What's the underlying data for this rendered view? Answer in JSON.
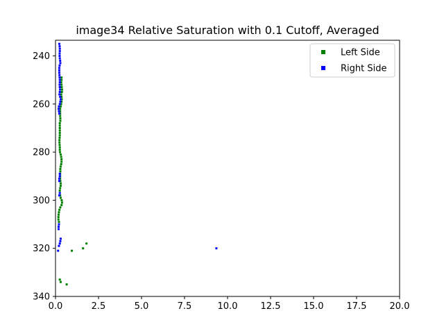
{
  "chart_data": {
    "type": "scatter",
    "title": "image34 Relative Saturation with 0.1 Cutoff, Averaged",
    "xlabel": "",
    "ylabel": "",
    "xlim": [
      0,
      20
    ],
    "ylim": [
      340,
      233.5
    ],
    "y_inverted": true,
    "x_ticks": [
      0,
      2.5,
      5,
      7.5,
      10,
      12.5,
      15,
      17.5,
      20
    ],
    "x_tick_labels": [
      "0.0",
      "2.5",
      "5.0",
      "7.5",
      "10.0",
      "12.5",
      "15.0",
      "17.5",
      "20.0"
    ],
    "y_ticks": [
      240,
      260,
      280,
      300,
      320,
      340
    ],
    "y_tick_labels": [
      "240",
      "260",
      "280",
      "300",
      "320",
      "340"
    ],
    "grid": false,
    "legend_position": "top-right",
    "series": [
      {
        "name": "Left Side",
        "color": "#008000",
        "marker": "square",
        "points": [
          [
            0.35,
            249
          ],
          [
            0.35,
            250
          ],
          [
            0.33,
            251
          ],
          [
            0.35,
            252
          ],
          [
            0.36,
            253
          ],
          [
            0.38,
            254
          ],
          [
            0.37,
            255
          ],
          [
            0.33,
            256
          ],
          [
            0.35,
            257
          ],
          [
            0.36,
            258
          ],
          [
            0.35,
            259
          ],
          [
            0.33,
            260
          ],
          [
            0.3,
            261
          ],
          [
            0.27,
            262
          ],
          [
            0.27,
            263
          ],
          [
            0.27,
            264
          ],
          [
            0.27,
            265
          ],
          [
            0.28,
            266
          ],
          [
            0.28,
            267
          ],
          [
            0.25,
            268
          ],
          [
            0.25,
            269
          ],
          [
            0.25,
            270
          ],
          [
            0.25,
            271
          ],
          [
            0.25,
            272
          ],
          [
            0.25,
            273
          ],
          [
            0.24,
            274
          ],
          [
            0.23,
            275
          ],
          [
            0.23,
            276
          ],
          [
            0.24,
            277
          ],
          [
            0.25,
            278
          ],
          [
            0.25,
            279
          ],
          [
            0.26,
            280
          ],
          [
            0.3,
            281
          ],
          [
            0.33,
            282
          ],
          [
            0.35,
            283
          ],
          [
            0.35,
            284
          ],
          [
            0.33,
            285
          ],
          [
            0.3,
            286
          ],
          [
            0.28,
            287
          ],
          [
            0.28,
            288
          ],
          [
            0.27,
            289
          ],
          [
            0.27,
            290
          ],
          [
            0.27,
            291
          ],
          [
            0.28,
            292
          ],
          [
            0.3,
            293
          ],
          [
            0.3,
            294
          ],
          [
            0.27,
            295
          ],
          [
            0.25,
            296
          ],
          [
            0.25,
            297
          ],
          [
            0.27,
            298
          ],
          [
            0.3,
            299
          ],
          [
            0.36,
            300
          ],
          [
            0.38,
            301
          ],
          [
            0.35,
            302
          ],
          [
            0.28,
            303
          ],
          [
            0.23,
            304
          ],
          [
            0.2,
            305
          ],
          [
            0.18,
            306
          ],
          [
            0.17,
            307
          ],
          [
            0.17,
            308
          ],
          [
            0.2,
            309
          ],
          [
            1.8,
            318
          ],
          [
            1.6,
            320
          ],
          [
            0.95,
            321
          ],
          [
            0.25,
            333
          ],
          [
            0.3,
            334
          ],
          [
            0.65,
            335
          ]
        ]
      },
      {
        "name": "Right Side",
        "color": "#0000ff",
        "marker": "square",
        "points": [
          [
            0.22,
            235
          ],
          [
            0.24,
            236
          ],
          [
            0.25,
            237
          ],
          [
            0.25,
            238
          ],
          [
            0.24,
            239
          ],
          [
            0.24,
            240
          ],
          [
            0.25,
            241
          ],
          [
            0.27,
            242
          ],
          [
            0.28,
            243
          ],
          [
            0.24,
            244
          ],
          [
            0.22,
            245
          ],
          [
            0.22,
            246
          ],
          [
            0.22,
            247
          ],
          [
            0.23,
            248
          ],
          [
            0.24,
            249
          ],
          [
            0.25,
            250
          ],
          [
            0.25,
            251
          ],
          [
            0.24,
            252
          ],
          [
            0.25,
            253
          ],
          [
            0.26,
            254
          ],
          [
            0.25,
            255
          ],
          [
            0.23,
            256
          ],
          [
            0.27,
            257
          ],
          [
            0.3,
            258
          ],
          [
            0.28,
            259
          ],
          [
            0.25,
            260
          ],
          [
            0.2,
            261
          ],
          [
            0.18,
            262
          ],
          [
            0.2,
            263
          ],
          [
            0.22,
            264
          ],
          [
            0.25,
            289
          ],
          [
            0.25,
            290
          ],
          [
            0.22,
            291
          ],
          [
            0.22,
            292
          ],
          [
            0.25,
            297
          ],
          [
            0.22,
            298
          ],
          [
            0.2,
            310
          ],
          [
            0.18,
            311
          ],
          [
            0.18,
            312
          ],
          [
            0.3,
            316
          ],
          [
            0.28,
            317
          ],
          [
            0.25,
            318
          ],
          [
            0.2,
            319
          ],
          [
            0.15,
            321
          ],
          [
            9.35,
            320
          ]
        ]
      }
    ]
  }
}
